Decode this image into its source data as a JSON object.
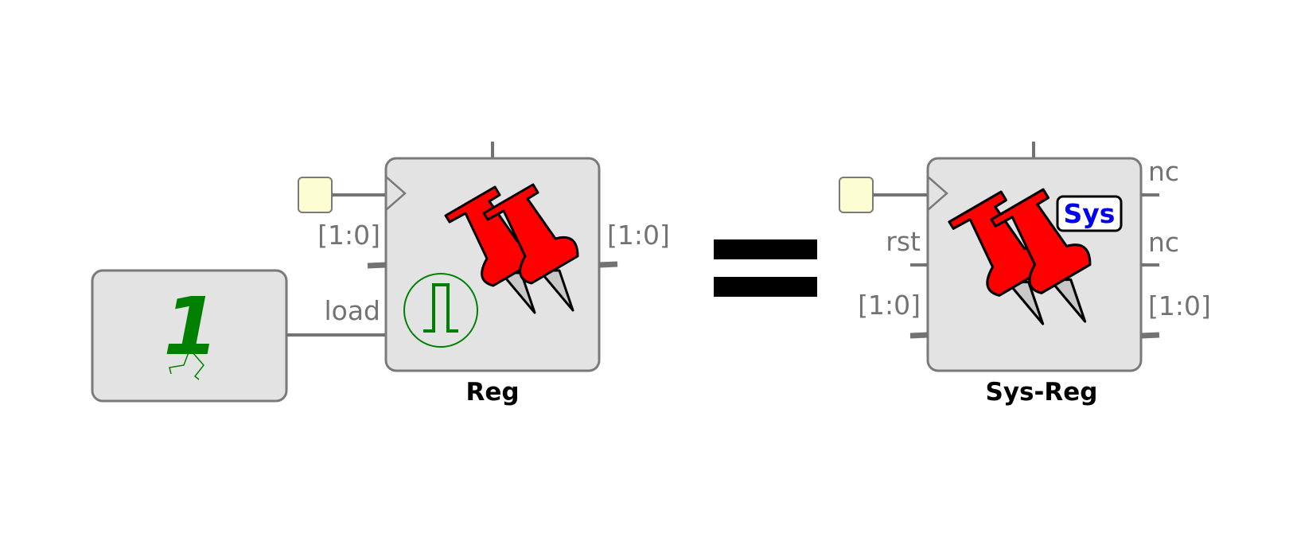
{
  "constant_block": {
    "value_glyph": "1",
    "glyph_color": "#008000"
  },
  "reg_block": {
    "name": "Reg",
    "input_bus_label": "[1:0]",
    "load_label": "load",
    "output_bus_label": "[1:0]",
    "icon": "pushpin-icon",
    "pulse_icon": "pulse-icon"
  },
  "equals": {
    "symbol": "="
  },
  "sys_reg_block": {
    "name": "Sys-Reg",
    "badge": "Sys",
    "rst_label": "rst",
    "input_bus_label": "[1:0]",
    "nc_top_label": "nc",
    "nc_mid_label": "nc",
    "output_bus_label": "[1:0]",
    "icon": "pushpin-icon"
  },
  "colors": {
    "block_fill": "#e3e3e3",
    "block_stroke": "#7a7a7a",
    "wire": "#737373",
    "clock_source_fill": "#fdfdd4",
    "pin_red": "#ff0000",
    "pin_needle": "#c8c8c8",
    "accent_green": "#008000",
    "badge_blue": "#0000ee"
  }
}
